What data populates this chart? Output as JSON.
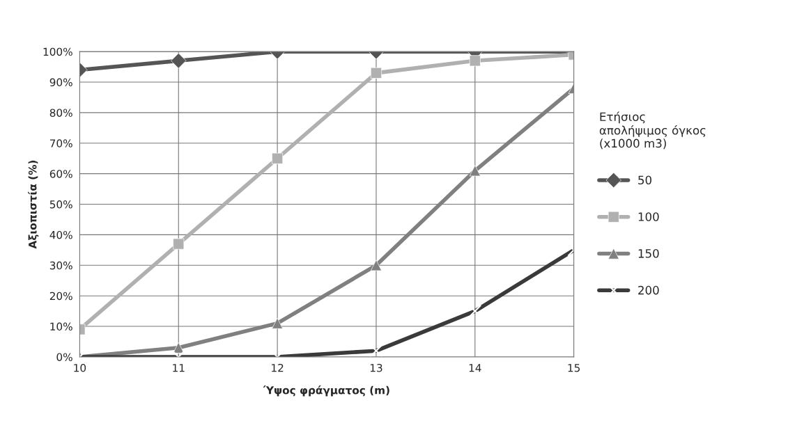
{
  "chart_data": {
    "type": "line",
    "xlabel": "Ύψος φράγματος (m)",
    "ylabel": "Αξιοπιστία (%)",
    "legend_title": "Ετήσιος\nαπολήψιμος όγκος\n(x1000 m3)",
    "x": [
      10,
      11,
      12,
      13,
      14,
      15
    ],
    "series": [
      {
        "name": "50",
        "color": "#555555",
        "marker": "diamond",
        "values": [
          94,
          97,
          100,
          100,
          100,
          100
        ]
      },
      {
        "name": "100",
        "color": "#b0b0b0",
        "marker": "square",
        "values": [
          9,
          37,
          65,
          93,
          97,
          99
        ]
      },
      {
        "name": "150",
        "color": "#808080",
        "marker": "triangle",
        "values": [
          0,
          3,
          11,
          30,
          61,
          88
        ]
      },
      {
        "name": "200",
        "color": "#3a3a3a",
        "marker": "cross",
        "values": [
          0,
          0,
          0,
          2,
          15,
          35
        ]
      }
    ],
    "xlim": [
      10,
      15
    ],
    "xticks": [
      10,
      11,
      12,
      13,
      14,
      15
    ],
    "ylim": [
      0,
      100
    ],
    "yticks": [
      {
        "value": 0,
        "label": "0%"
      },
      {
        "value": 10,
        "label": "10%"
      },
      {
        "value": 20,
        "label": "20%"
      },
      {
        "value": 30,
        "label": "30%"
      },
      {
        "value": 40,
        "label": "40%"
      },
      {
        "value": 50,
        "label": "50%"
      },
      {
        "value": 60,
        "label": "60%"
      },
      {
        "value": 70,
        "label": "70%"
      },
      {
        "value": 80,
        "label": "80%"
      },
      {
        "value": 90,
        "label": "90%"
      },
      {
        "value": 100,
        "label": "100%"
      }
    ],
    "grid": true,
    "legend": "right",
    "line_style": "solid"
  }
}
